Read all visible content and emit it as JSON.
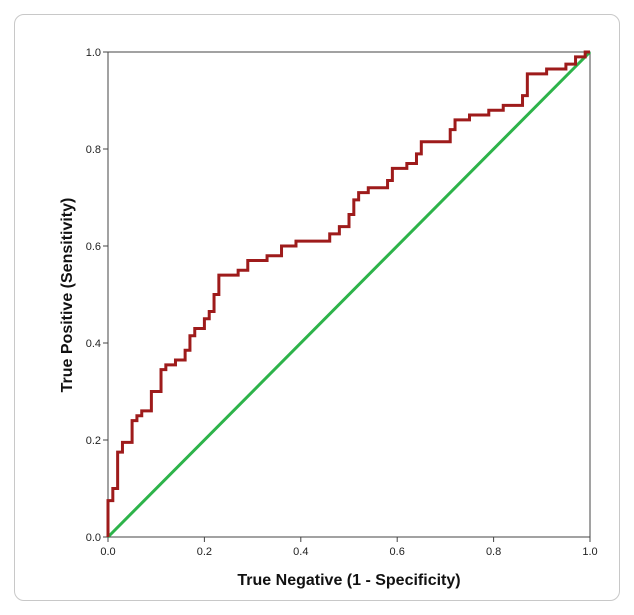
{
  "chart_data": {
    "type": "line",
    "title": "",
    "xlabel": "True Negative (1 - Specificity)",
    "ylabel": "True Positive (Sensitivity)",
    "xlim": [
      0,
      1
    ],
    "ylim": [
      0,
      1
    ],
    "x_ticks": [
      "0.0",
      "0.2",
      "0.4",
      "0.6",
      "0.8",
      "1.0"
    ],
    "y_ticks": [
      "0.0",
      "0.2",
      "0.4",
      "0.6",
      "0.8",
      "1.0"
    ],
    "grid": false,
    "legend": "none",
    "series": [
      {
        "color": "#9e1b1b",
        "step": true,
        "points": [
          [
            0.0,
            0.0
          ],
          [
            0.0,
            0.075
          ],
          [
            0.01,
            0.075
          ],
          [
            0.01,
            0.1
          ],
          [
            0.02,
            0.1
          ],
          [
            0.02,
            0.175
          ],
          [
            0.03,
            0.175
          ],
          [
            0.03,
            0.195
          ],
          [
            0.05,
            0.195
          ],
          [
            0.05,
            0.24
          ],
          [
            0.06,
            0.24
          ],
          [
            0.06,
            0.25
          ],
          [
            0.07,
            0.25
          ],
          [
            0.07,
            0.26
          ],
          [
            0.09,
            0.26
          ],
          [
            0.09,
            0.3
          ],
          [
            0.11,
            0.3
          ],
          [
            0.11,
            0.345
          ],
          [
            0.12,
            0.345
          ],
          [
            0.12,
            0.355
          ],
          [
            0.14,
            0.355
          ],
          [
            0.14,
            0.365
          ],
          [
            0.16,
            0.365
          ],
          [
            0.16,
            0.385
          ],
          [
            0.17,
            0.385
          ],
          [
            0.17,
            0.415
          ],
          [
            0.18,
            0.415
          ],
          [
            0.18,
            0.43
          ],
          [
            0.2,
            0.43
          ],
          [
            0.2,
            0.45
          ],
          [
            0.21,
            0.45
          ],
          [
            0.21,
            0.465
          ],
          [
            0.22,
            0.465
          ],
          [
            0.22,
            0.5
          ],
          [
            0.23,
            0.5
          ],
          [
            0.23,
            0.54
          ],
          [
            0.27,
            0.54
          ],
          [
            0.27,
            0.55
          ],
          [
            0.29,
            0.55
          ],
          [
            0.29,
            0.57
          ],
          [
            0.33,
            0.57
          ],
          [
            0.33,
            0.58
          ],
          [
            0.36,
            0.58
          ],
          [
            0.36,
            0.6
          ],
          [
            0.39,
            0.6
          ],
          [
            0.39,
            0.61
          ],
          [
            0.46,
            0.61
          ],
          [
            0.46,
            0.625
          ],
          [
            0.48,
            0.625
          ],
          [
            0.48,
            0.64
          ],
          [
            0.5,
            0.64
          ],
          [
            0.5,
            0.665
          ],
          [
            0.51,
            0.665
          ],
          [
            0.51,
            0.695
          ],
          [
            0.52,
            0.695
          ],
          [
            0.52,
            0.71
          ],
          [
            0.54,
            0.71
          ],
          [
            0.54,
            0.72
          ],
          [
            0.58,
            0.72
          ],
          [
            0.58,
            0.735
          ],
          [
            0.59,
            0.735
          ],
          [
            0.59,
            0.76
          ],
          [
            0.62,
            0.76
          ],
          [
            0.62,
            0.77
          ],
          [
            0.64,
            0.77
          ],
          [
            0.64,
            0.79
          ],
          [
            0.65,
            0.79
          ],
          [
            0.65,
            0.815
          ],
          [
            0.71,
            0.815
          ],
          [
            0.71,
            0.84
          ],
          [
            0.72,
            0.84
          ],
          [
            0.72,
            0.86
          ],
          [
            0.75,
            0.86
          ],
          [
            0.75,
            0.87
          ],
          [
            0.79,
            0.87
          ],
          [
            0.79,
            0.88
          ],
          [
            0.82,
            0.88
          ],
          [
            0.82,
            0.89
          ],
          [
            0.86,
            0.89
          ],
          [
            0.86,
            0.91
          ],
          [
            0.87,
            0.91
          ],
          [
            0.87,
            0.955
          ],
          [
            0.91,
            0.955
          ],
          [
            0.91,
            0.965
          ],
          [
            0.95,
            0.965
          ],
          [
            0.95,
            0.975
          ],
          [
            0.97,
            0.975
          ],
          [
            0.97,
            0.99
          ],
          [
            0.99,
            0.99
          ],
          [
            0.99,
            1.0
          ],
          [
            1.0,
            1.0
          ]
        ]
      },
      {
        "color": "#2db34a",
        "step": false,
        "points": [
          [
            0.0,
            0.0
          ],
          [
            1.0,
            1.0
          ]
        ]
      }
    ]
  }
}
